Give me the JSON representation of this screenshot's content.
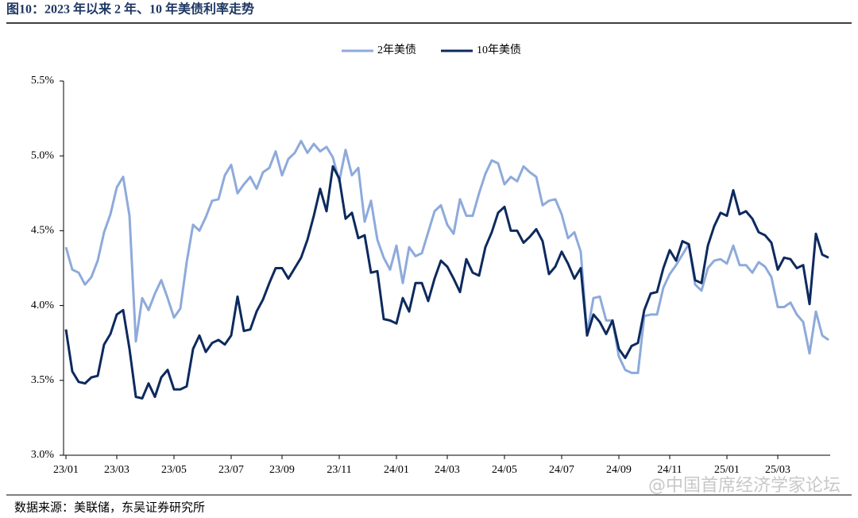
{
  "chart_data": {
    "type": "line",
    "title": "图10：2023 年以来 2 年、10 年美债利率走势",
    "source": "数据来源：美联储，东吴证券研究所",
    "watermark": "@中国首席经济学家论坛",
    "categories": [
      "23/01",
      null,
      null,
      null,
      null,
      null,
      null,
      null,
      "23/03",
      null,
      null,
      null,
      null,
      null,
      null,
      null,
      null,
      "23/05",
      null,
      null,
      null,
      null,
      null,
      null,
      null,
      null,
      "23/07",
      null,
      null,
      null,
      null,
      null,
      null,
      null,
      "23/09",
      null,
      null,
      null,
      null,
      null,
      null,
      null,
      null,
      "23/11",
      null,
      null,
      null,
      null,
      null,
      null,
      null,
      null,
      "24/01",
      null,
      null,
      null,
      null,
      null,
      null,
      null,
      "24/03",
      null,
      null,
      null,
      null,
      null,
      null,
      null,
      null,
      "24/05",
      null,
      null,
      null,
      null,
      null,
      null,
      null,
      null,
      "24/07",
      null,
      null,
      null,
      null,
      null,
      null,
      null,
      null,
      "24/09",
      null,
      null,
      null,
      null,
      null,
      null,
      null,
      "24/11",
      null,
      null,
      null,
      null,
      null,
      null,
      null,
      null,
      "25/01",
      null,
      null,
      null,
      null,
      null,
      null,
      null,
      "25/03",
      null,
      null,
      null,
      null,
      null,
      null,
      null,
      null
    ],
    "series": [
      {
        "name": "2年美债",
        "color": "#8eaadb",
        "values": [
          4.39,
          4.24,
          4.22,
          4.14,
          4.19,
          4.3,
          4.49,
          4.61,
          4.79,
          4.86,
          4.6,
          3.76,
          4.05,
          3.97,
          4.08,
          4.17,
          4.05,
          3.92,
          3.98,
          4.29,
          4.54,
          4.5,
          4.59,
          4.7,
          4.71,
          4.87,
          4.94,
          4.75,
          4.81,
          4.86,
          4.78,
          4.89,
          4.92,
          5.03,
          4.87,
          4.98,
          5.02,
          5.1,
          5.02,
          5.08,
          5.03,
          5.06,
          4.99,
          4.83,
          5.04,
          4.87,
          4.92,
          4.56,
          4.7,
          4.44,
          4.32,
          4.24,
          4.4,
          4.15,
          4.39,
          4.33,
          4.35,
          4.49,
          4.63,
          4.67,
          4.54,
          4.48,
          4.71,
          4.6,
          4.6,
          4.75,
          4.88,
          4.97,
          4.95,
          4.81,
          4.86,
          4.83,
          4.93,
          4.89,
          4.86,
          4.67,
          4.7,
          4.71,
          4.61,
          4.45,
          4.49,
          4.36,
          3.81,
          4.05,
          4.06,
          3.9,
          3.9,
          3.66,
          3.57,
          3.55,
          3.55,
          3.93,
          3.94,
          3.94,
          4.12,
          4.21,
          4.27,
          4.34,
          4.41,
          4.14,
          4.1,
          4.25,
          4.3,
          4.31,
          4.28,
          4.4,
          4.27,
          4.27,
          4.22,
          4.29,
          4.26,
          4.19,
          3.99,
          3.99,
          4.02,
          3.94,
          3.89,
          3.68,
          3.96,
          3.8,
          3.77
        ]
      },
      {
        "name": "10年美债",
        "color": "#0d2a5e",
        "values": [
          3.84,
          3.56,
          3.49,
          3.48,
          3.52,
          3.53,
          3.74,
          3.81,
          3.94,
          3.97,
          3.71,
          3.39,
          3.38,
          3.48,
          3.39,
          3.52,
          3.57,
          3.44,
          3.44,
          3.46,
          3.71,
          3.8,
          3.69,
          3.75,
          3.77,
          3.74,
          3.8,
          4.06,
          3.83,
          3.84,
          3.96,
          4.04,
          4.15,
          4.25,
          4.25,
          4.18,
          4.25,
          4.32,
          4.44,
          4.6,
          4.78,
          4.63,
          4.93,
          4.85,
          4.58,
          4.62,
          4.45,
          4.47,
          4.22,
          4.23,
          3.91,
          3.9,
          3.88,
          4.05,
          3.96,
          4.15,
          4.15,
          4.03,
          4.18,
          4.3,
          4.26,
          4.18,
          4.09,
          4.31,
          4.22,
          4.2,
          4.39,
          4.49,
          4.62,
          4.66,
          4.5,
          4.5,
          4.42,
          4.46,
          4.51,
          4.43,
          4.21,
          4.26,
          4.36,
          4.28,
          4.18,
          4.25,
          3.8,
          3.94,
          3.89,
          3.81,
          3.9,
          3.71,
          3.65,
          3.73,
          3.75,
          3.97,
          4.08,
          4.09,
          4.25,
          4.37,
          4.3,
          4.43,
          4.41,
          4.17,
          4.15,
          4.4,
          4.53,
          4.62,
          4.6,
          4.77,
          4.61,
          4.63,
          4.58,
          4.49,
          4.47,
          4.42,
          4.24,
          4.32,
          4.31,
          4.25,
          4.27,
          4.01,
          4.48,
          4.34,
          4.32
        ]
      }
    ],
    "ylim": [
      3.0,
      5.5
    ],
    "yticks": [
      {
        "value": 3.0,
        "label": "3.0%"
      },
      {
        "value": 3.5,
        "label": "3.5%"
      },
      {
        "value": 4.0,
        "label": "4.0%"
      },
      {
        "value": 4.5,
        "label": "4.5%"
      },
      {
        "value": 5.0,
        "label": "5.0%"
      },
      {
        "value": 5.5,
        "label": "5.5%"
      }
    ],
    "grid": false,
    "legend": "top"
  }
}
